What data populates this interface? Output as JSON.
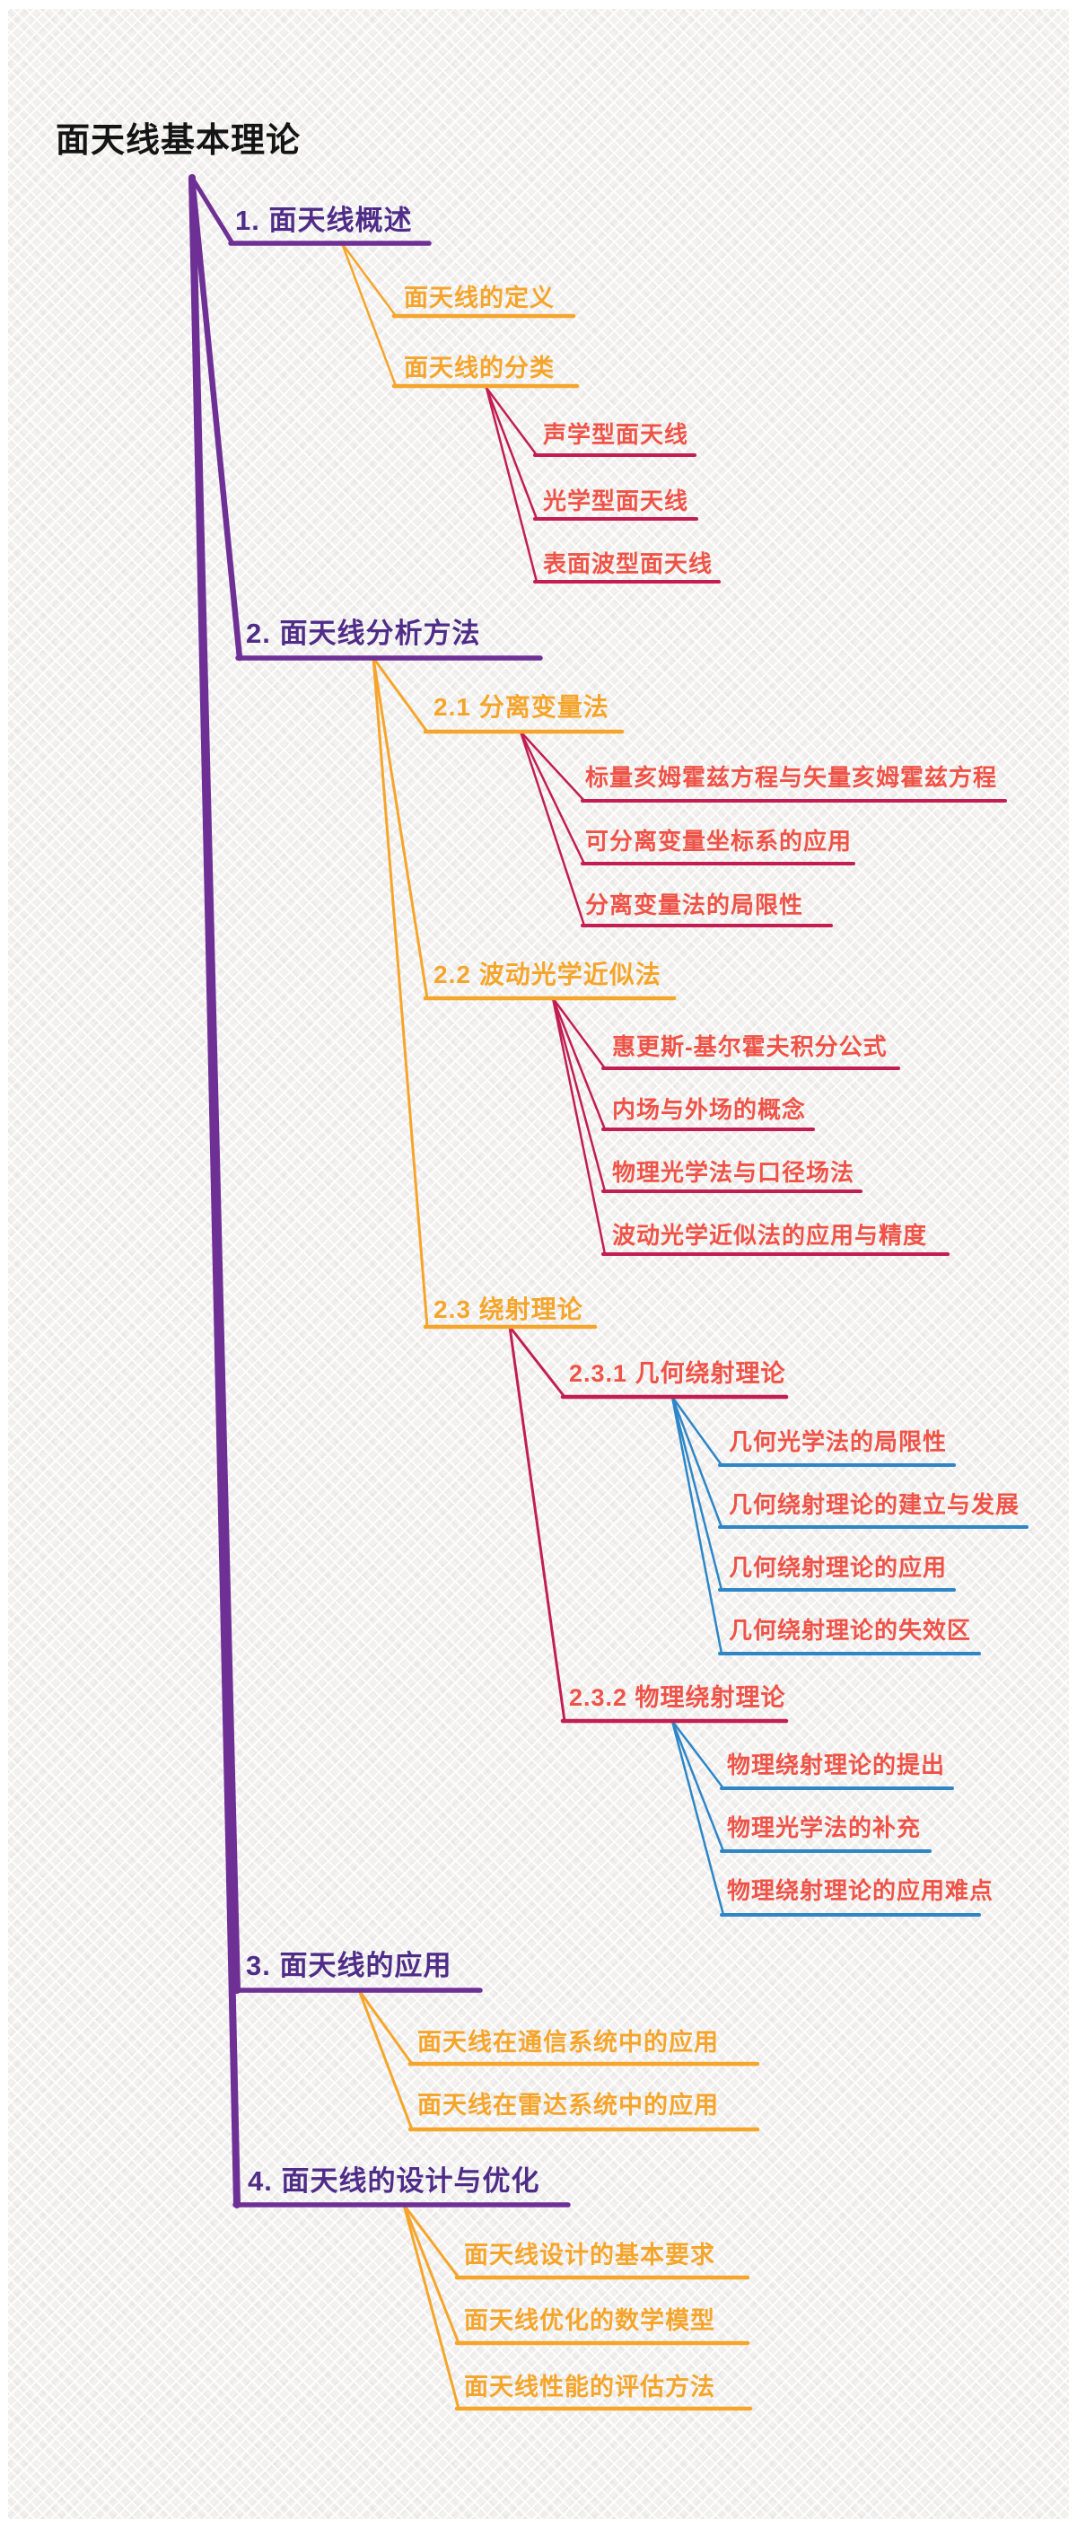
{
  "title": "面天线基本理论",
  "colors": {
    "title": "#141414",
    "purple_text": "#4F2C87",
    "purple_line": "#6F3095",
    "orange": "#F5A52B",
    "crimson": "#C21E51",
    "coral": "#EF5347",
    "blue": "#2E86C7",
    "background": "#F2F1F0"
  },
  "mindmap": {
    "branches": [
      {
        "label": "1. 面天线概述",
        "children": [
          {
            "label": "面天线的定义",
            "children": []
          },
          {
            "label": "面天线的分类",
            "children": [
              {
                "label": "声学型面天线"
              },
              {
                "label": "光学型面天线"
              },
              {
                "label": "表面波型面天线"
              }
            ]
          }
        ]
      },
      {
        "label": "2. 面天线分析方法",
        "children": [
          {
            "label": "2.1 分离变量法",
            "children": [
              {
                "label": "标量亥姆霍兹方程与矢量亥姆霍兹方程"
              },
              {
                "label": "可分离变量坐标系的应用"
              },
              {
                "label": "分离变量法的局限性"
              }
            ]
          },
          {
            "label": "2.2 波动光学近似法",
            "children": [
              {
                "label": "惠更斯-基尔霍夫积分公式"
              },
              {
                "label": "内场与外场的概念"
              },
              {
                "label": "物理光学法与口径场法"
              },
              {
                "label": "波动光学近似法的应用与精度"
              }
            ]
          },
          {
            "label": "2.3 绕射理论",
            "children": [
              {
                "label": "2.3.1 几何绕射理论",
                "children": [
                  {
                    "label": "几何光学法的局限性"
                  },
                  {
                    "label": "几何绕射理论的建立与发展"
                  },
                  {
                    "label": "几何绕射理论的应用"
                  },
                  {
                    "label": "几何绕射理论的失效区"
                  }
                ]
              },
              {
                "label": "2.3.2 物理绕射理论",
                "children": [
                  {
                    "label": "物理绕射理论的提出"
                  },
                  {
                    "label": "物理光学法的补充"
                  },
                  {
                    "label": "物理绕射理论的应用难点"
                  }
                ]
              }
            ]
          }
        ]
      },
      {
        "label": "3. 面天线的应用",
        "children": [
          {
            "label": "面天线在通信系统中的应用"
          },
          {
            "label": "面天线在雷达系统中的应用"
          }
        ]
      },
      {
        "label": "4. 面天线的设计与优化",
        "children": [
          {
            "label": "面天线设计的基本要求"
          },
          {
            "label": "面天线优化的数学模型"
          },
          {
            "label": "面天线性能的评估方法"
          }
        ]
      }
    ]
  }
}
